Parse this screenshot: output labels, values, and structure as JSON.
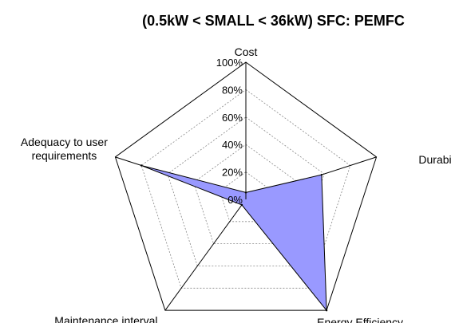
{
  "chart_data": {
    "type": "radar",
    "title": "(0.5kW < SMALL < 36kW) SFC: PEMFC",
    "axes": [
      "Cost",
      "Durability",
      "Energy Efficiency",
      "Maintenance interval",
      "Adequacy to user requirements"
    ],
    "axis_label_lines": [
      [
        "Cost"
      ],
      [
        "Durability"
      ],
      [
        "Energy Efficiency"
      ],
      [
        "Maintenance interval"
      ],
      [
        "Adequacy to user",
        "requirements"
      ]
    ],
    "rlim": [
      0,
      100
    ],
    "ticks": [
      "0%",
      "20%",
      "40%",
      "60%",
      "80%",
      "100%"
    ],
    "grid": true,
    "series": [
      {
        "values": [
          5,
          58,
          100,
          5,
          80
        ],
        "color": "#9999ff",
        "edge": "#000000"
      }
    ]
  }
}
